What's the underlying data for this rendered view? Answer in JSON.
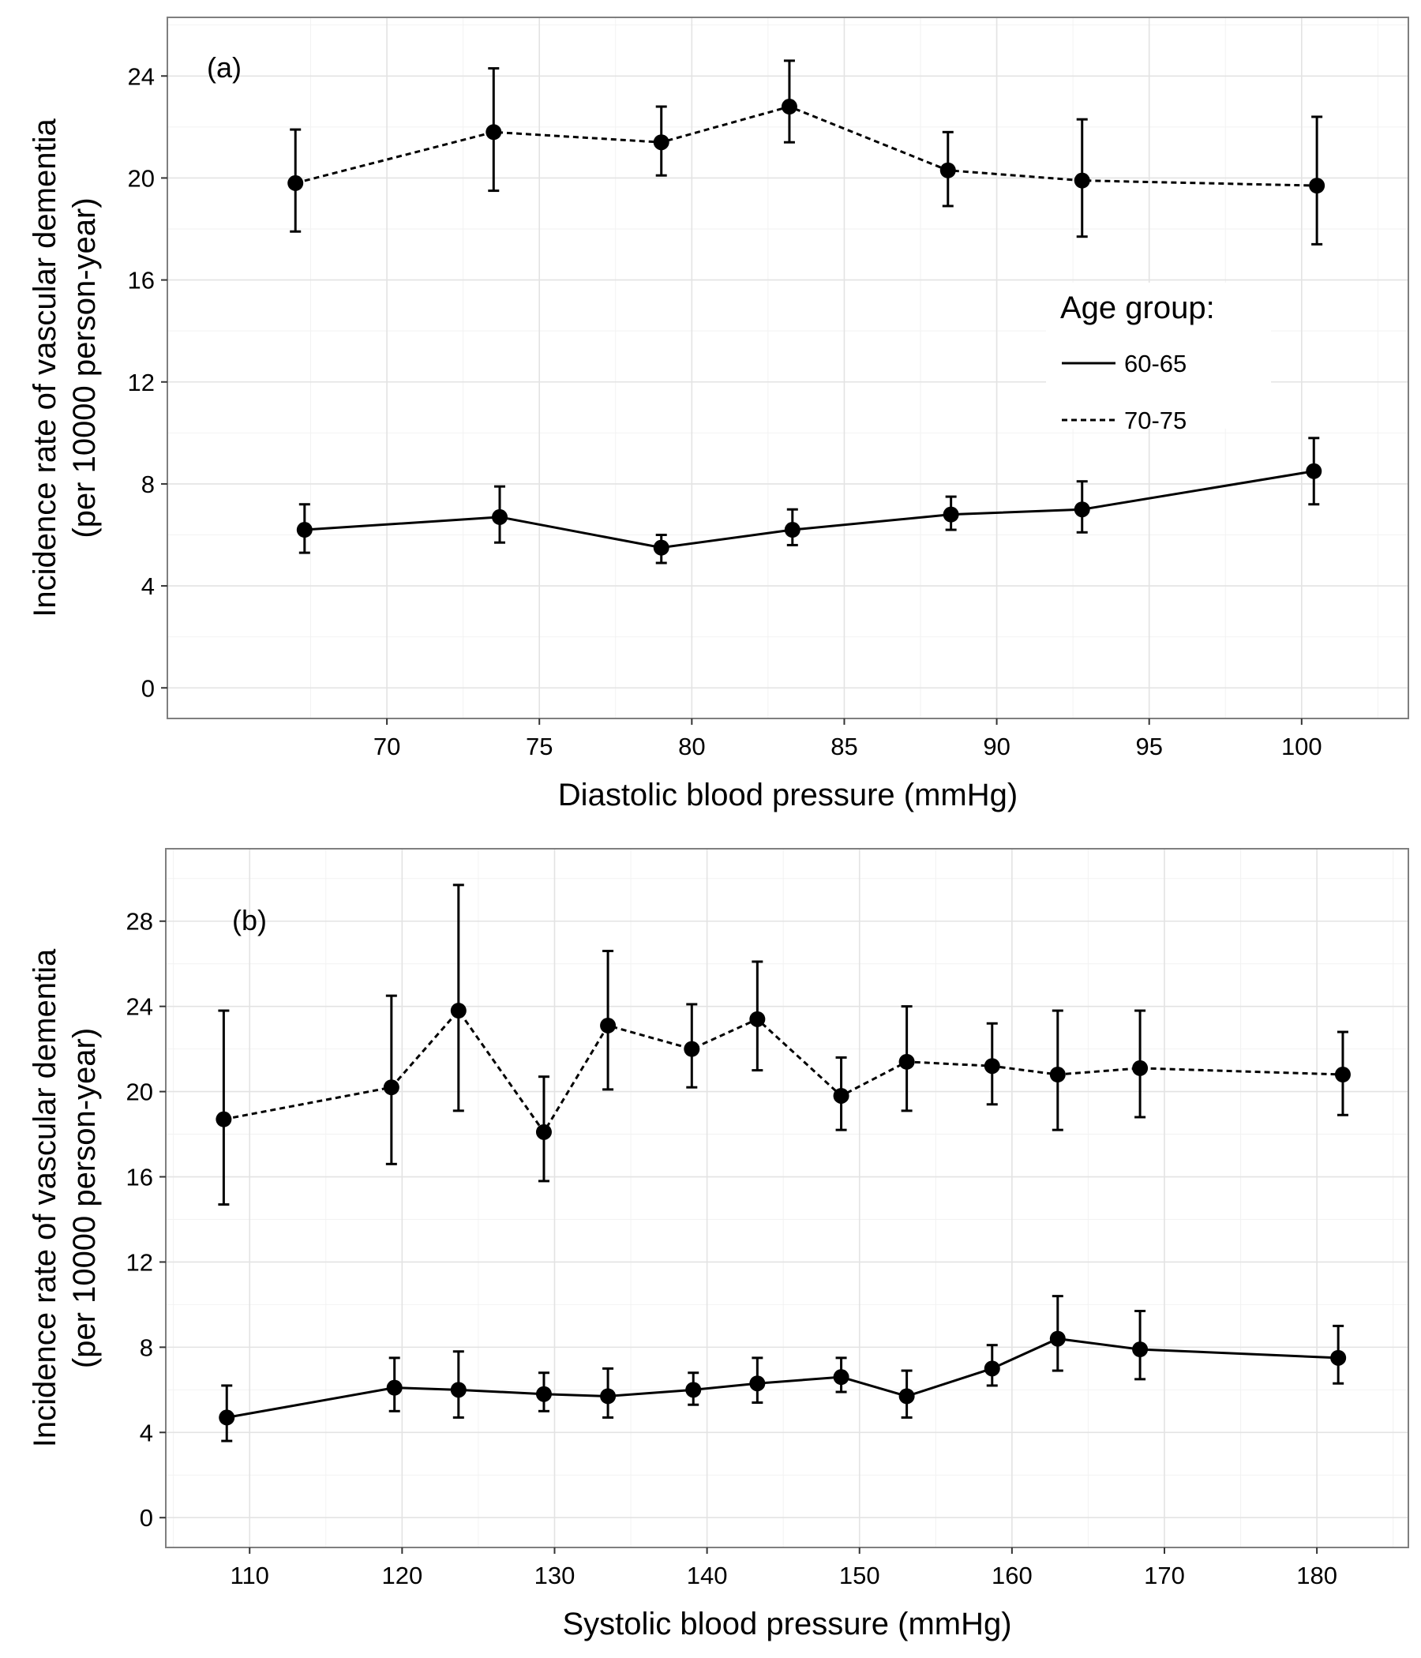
{
  "chart_data": [
    {
      "type": "line",
      "panel_label": "(a)",
      "xlabel": "Diastolic blood pressure (mmHg)",
      "ylabel": "Incidence rate of vascular dementia",
      "ylabel_line2": "(per 10000 person-year)",
      "xlim": [
        62.8,
        103.5
      ],
      "ylim": [
        -1.2,
        26.3
      ],
      "xticks": [
        70,
        75,
        80,
        85,
        90,
        95,
        100
      ],
      "yticks": [
        0,
        4,
        8,
        12,
        16,
        20,
        24
      ],
      "grid": true,
      "error_bars": true,
      "legend": {
        "title": "Age group:",
        "placement": "inside-right",
        "entries": [
          {
            "label": "60-65",
            "line_style": "solid"
          },
          {
            "label": "70-75",
            "line_style": "dashed"
          }
        ]
      },
      "series": [
        {
          "legend_label": "60-65",
          "line_style": "solid",
          "x": [
            67.3,
            73.7,
            79.0,
            83.3,
            88.5,
            92.8,
            100.4
          ],
          "y": [
            6.2,
            6.7,
            5.5,
            6.2,
            6.8,
            7.0,
            8.5
          ],
          "y_low": [
            5.3,
            5.7,
            4.9,
            5.6,
            6.2,
            6.1,
            7.2
          ],
          "y_high": [
            7.2,
            7.9,
            6.0,
            7.0,
            7.5,
            8.1,
            9.8
          ]
        },
        {
          "legend_label": "70-75",
          "line_style": "dashed",
          "x": [
            67.0,
            73.5,
            79.0,
            83.2,
            88.4,
            92.8,
            100.5
          ],
          "y": [
            19.8,
            21.8,
            21.4,
            22.8,
            20.3,
            19.9,
            19.7
          ],
          "y_low": [
            17.9,
            19.5,
            20.1,
            21.4,
            18.9,
            17.7,
            17.4
          ],
          "y_high": [
            21.9,
            24.3,
            22.8,
            24.6,
            21.8,
            22.3,
            22.4
          ]
        }
      ]
    },
    {
      "type": "line",
      "panel_label": "(b)",
      "xlabel": "Systolic blood pressure (mmHg)",
      "ylabel": "Incidence rate of vascular dementia",
      "ylabel_line2": "(per 10000 person-year)",
      "xlim": [
        104.5,
        186.0
      ],
      "ylim": [
        -1.4,
        31.4
      ],
      "xticks": [
        110,
        120,
        130,
        140,
        150,
        160,
        170,
        180
      ],
      "yticks": [
        0,
        4,
        8,
        12,
        16,
        20,
        24,
        28
      ],
      "grid": true,
      "error_bars": true,
      "series": [
        {
          "legend_label": "60-65",
          "line_style": "solid",
          "x": [
            108.5,
            119.5,
            123.7,
            129.3,
            133.5,
            139.1,
            143.3,
            148.8,
            153.1,
            158.7,
            163.0,
            168.4,
            181.4
          ],
          "y": [
            4.7,
            6.1,
            6.0,
            5.8,
            5.7,
            6.0,
            6.3,
            6.6,
            5.7,
            7.0,
            8.4,
            7.9,
            7.5
          ],
          "y_low": [
            3.6,
            5.0,
            4.7,
            5.0,
            4.7,
            5.3,
            5.4,
            5.9,
            4.7,
            6.2,
            6.9,
            6.5,
            6.3
          ],
          "y_high": [
            6.2,
            7.5,
            7.8,
            6.8,
            7.0,
            6.8,
            7.5,
            7.5,
            6.9,
            8.1,
            10.4,
            9.7,
            9.0
          ]
        },
        {
          "legend_label": "70-75",
          "line_style": "dashed",
          "x": [
            108.3,
            119.3,
            123.7,
            129.3,
            133.5,
            139.0,
            143.3,
            148.8,
            153.1,
            158.7,
            163.0,
            168.4,
            181.7
          ],
          "y": [
            18.7,
            20.2,
            23.8,
            18.1,
            23.1,
            22.0,
            23.4,
            19.8,
            21.4,
            21.2,
            20.8,
            21.1,
            20.8
          ],
          "y_low": [
            14.7,
            16.6,
            19.1,
            15.8,
            20.1,
            20.2,
            21.0,
            18.2,
            19.1,
            19.4,
            18.2,
            18.8,
            18.9
          ],
          "y_high": [
            23.8,
            24.5,
            29.7,
            20.7,
            26.6,
            24.1,
            26.1,
            21.6,
            24.0,
            23.2,
            23.8,
            23.8,
            22.8
          ]
        }
      ]
    }
  ]
}
